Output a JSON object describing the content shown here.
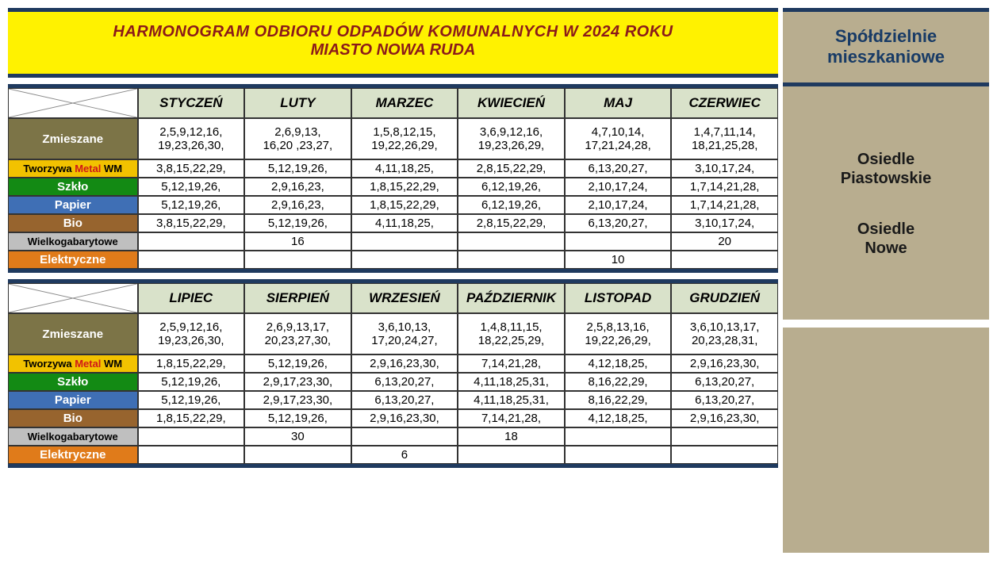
{
  "title": {
    "line1": "HARMONOGRAM ODBIORU  ODPADÓW  KOMUNALNYCH  W 2024 ROKU",
    "line2": "MIASTO NOWA RUDA"
  },
  "side": {
    "header1": "Spółdzielnie",
    "header2": "mieszkaniowe",
    "loc1a": "Osiedle",
    "loc1b": "Piastowskie",
    "loc2a": "Osiedle",
    "loc2b": "Nowe"
  },
  "months1": [
    "STYCZEŃ",
    "LUTY",
    "MARZEC",
    "KWIECIEŃ",
    "MAJ",
    "CZERWIEC"
  ],
  "months2": [
    "LIPIEC",
    "SIERPIEŃ",
    "WRZESIEŃ",
    "PAŹDZIERNIK",
    "LISTOPAD",
    "GRUDZIEŃ"
  ],
  "categories": {
    "zmieszane": "Zmieszane",
    "tworzywa_pre": "Tworzywa ",
    "tworzywa_metal": "Metal",
    "tworzywa_post": " WM",
    "szklo": "Szkło",
    "papier": "Papier",
    "bio": "Bio",
    "wielk": "Wielkogabarytowe",
    "elek": "Elektryczne"
  },
  "half1": {
    "zmieszane": [
      "2,5,9,12,16,19,23,26,30,",
      "2,6,9,13,16,20 ,23,27,",
      "1,5,8,12,15,19,22,26,29,",
      "3,6,9,12,16,19,23,26,29,",
      "4,7,10,14,17,21,24,28,",
      "1,4,7,11,14,18,21,25,28,"
    ],
    "tworzywa": [
      "3,8,15,22,29,",
      "5,12,19,26,",
      "4,11,18,25,",
      "2,8,15,22,29,",
      "6,13,20,27,",
      "3,10,17,24,"
    ],
    "szklo": [
      "5,12,19,26,",
      "2,9,16,23,",
      "1,8,15,22,29,",
      "6,12,19,26,",
      "2,10,17,24,",
      "1,7,14,21,28,"
    ],
    "papier": [
      "5,12,19,26,",
      "2,9,16,23,",
      "1,8,15,22,29,",
      "6,12,19,26,",
      "2,10,17,24,",
      "1,7,14,21,28,"
    ],
    "bio": [
      "3,8,15,22,29,",
      "5,12,19,26,",
      "4,11,18,25,",
      "2,8,15,22,29,",
      "6,13,20,27,",
      "3,10,17,24,"
    ],
    "wielk": [
      "",
      "16",
      "",
      "",
      "",
      "20"
    ],
    "elek": [
      "",
      "",
      "",
      "",
      "10",
      ""
    ]
  },
  "half2": {
    "zmieszane": [
      "2,5,9,12,16,19,23,26,30,",
      "2,6,9,13,17,20,23,27,30,",
      "3,6,10,13,17,20,24,27,",
      "1,4,8,11,15,18,22,25,29,",
      "2,5,8,13,16,19,22,26,29,",
      "3,6,10,13,17,20,23,28,31,"
    ],
    "tworzywa": [
      "1,8,15,22,29,",
      "5,12,19,26,",
      "2,9,16,23,30,",
      "7,14,21,28,",
      "4,12,18,25,",
      "2,9,16,23,30,"
    ],
    "szklo": [
      "5,12,19,26,",
      "2,9,17,23,30,",
      "6,13,20,27,",
      "4,11,18,25,31,",
      "8,16,22,29,",
      "6,13,20,27,"
    ],
    "papier": [
      "5,12,19,26,",
      "2,9,17,23,30,",
      "6,13,20,27,",
      "4,11,18,25,31,",
      "8,16,22,29,",
      "6,13,20,27,"
    ],
    "bio": [
      "1,8,15,22,29,",
      "5,12,19,26,",
      "2,9,16,23,30,",
      "7,14,21,28,",
      "4,12,18,25,",
      "2,9,16,23,30,"
    ],
    "wielk": [
      "",
      "30",
      "",
      "18",
      "",
      ""
    ],
    "elek": [
      "",
      "",
      "6",
      "",
      "",
      ""
    ]
  },
  "colors": {
    "banner_bg": "#fff200",
    "banner_text": "#8b1a1a",
    "frame": "#1f3a5f",
    "month_head_bg": "#d9e2ca",
    "side_bg": "#b8ad8f",
    "side_title": "#183b66",
    "zmieszane": "#7c7447",
    "tworzywa": "#f2c200",
    "metal_red": "#d01818",
    "szklo": "#138a14",
    "papier": "#3f6fb5",
    "bio": "#97642e",
    "wielk": "#bfbfbf",
    "elek": "#e07b1a"
  },
  "layout": {
    "font_body": 15,
    "font_title": 20,
    "font_side_title": 22,
    "cat_col_width": 158,
    "data_col_width": 130
  }
}
